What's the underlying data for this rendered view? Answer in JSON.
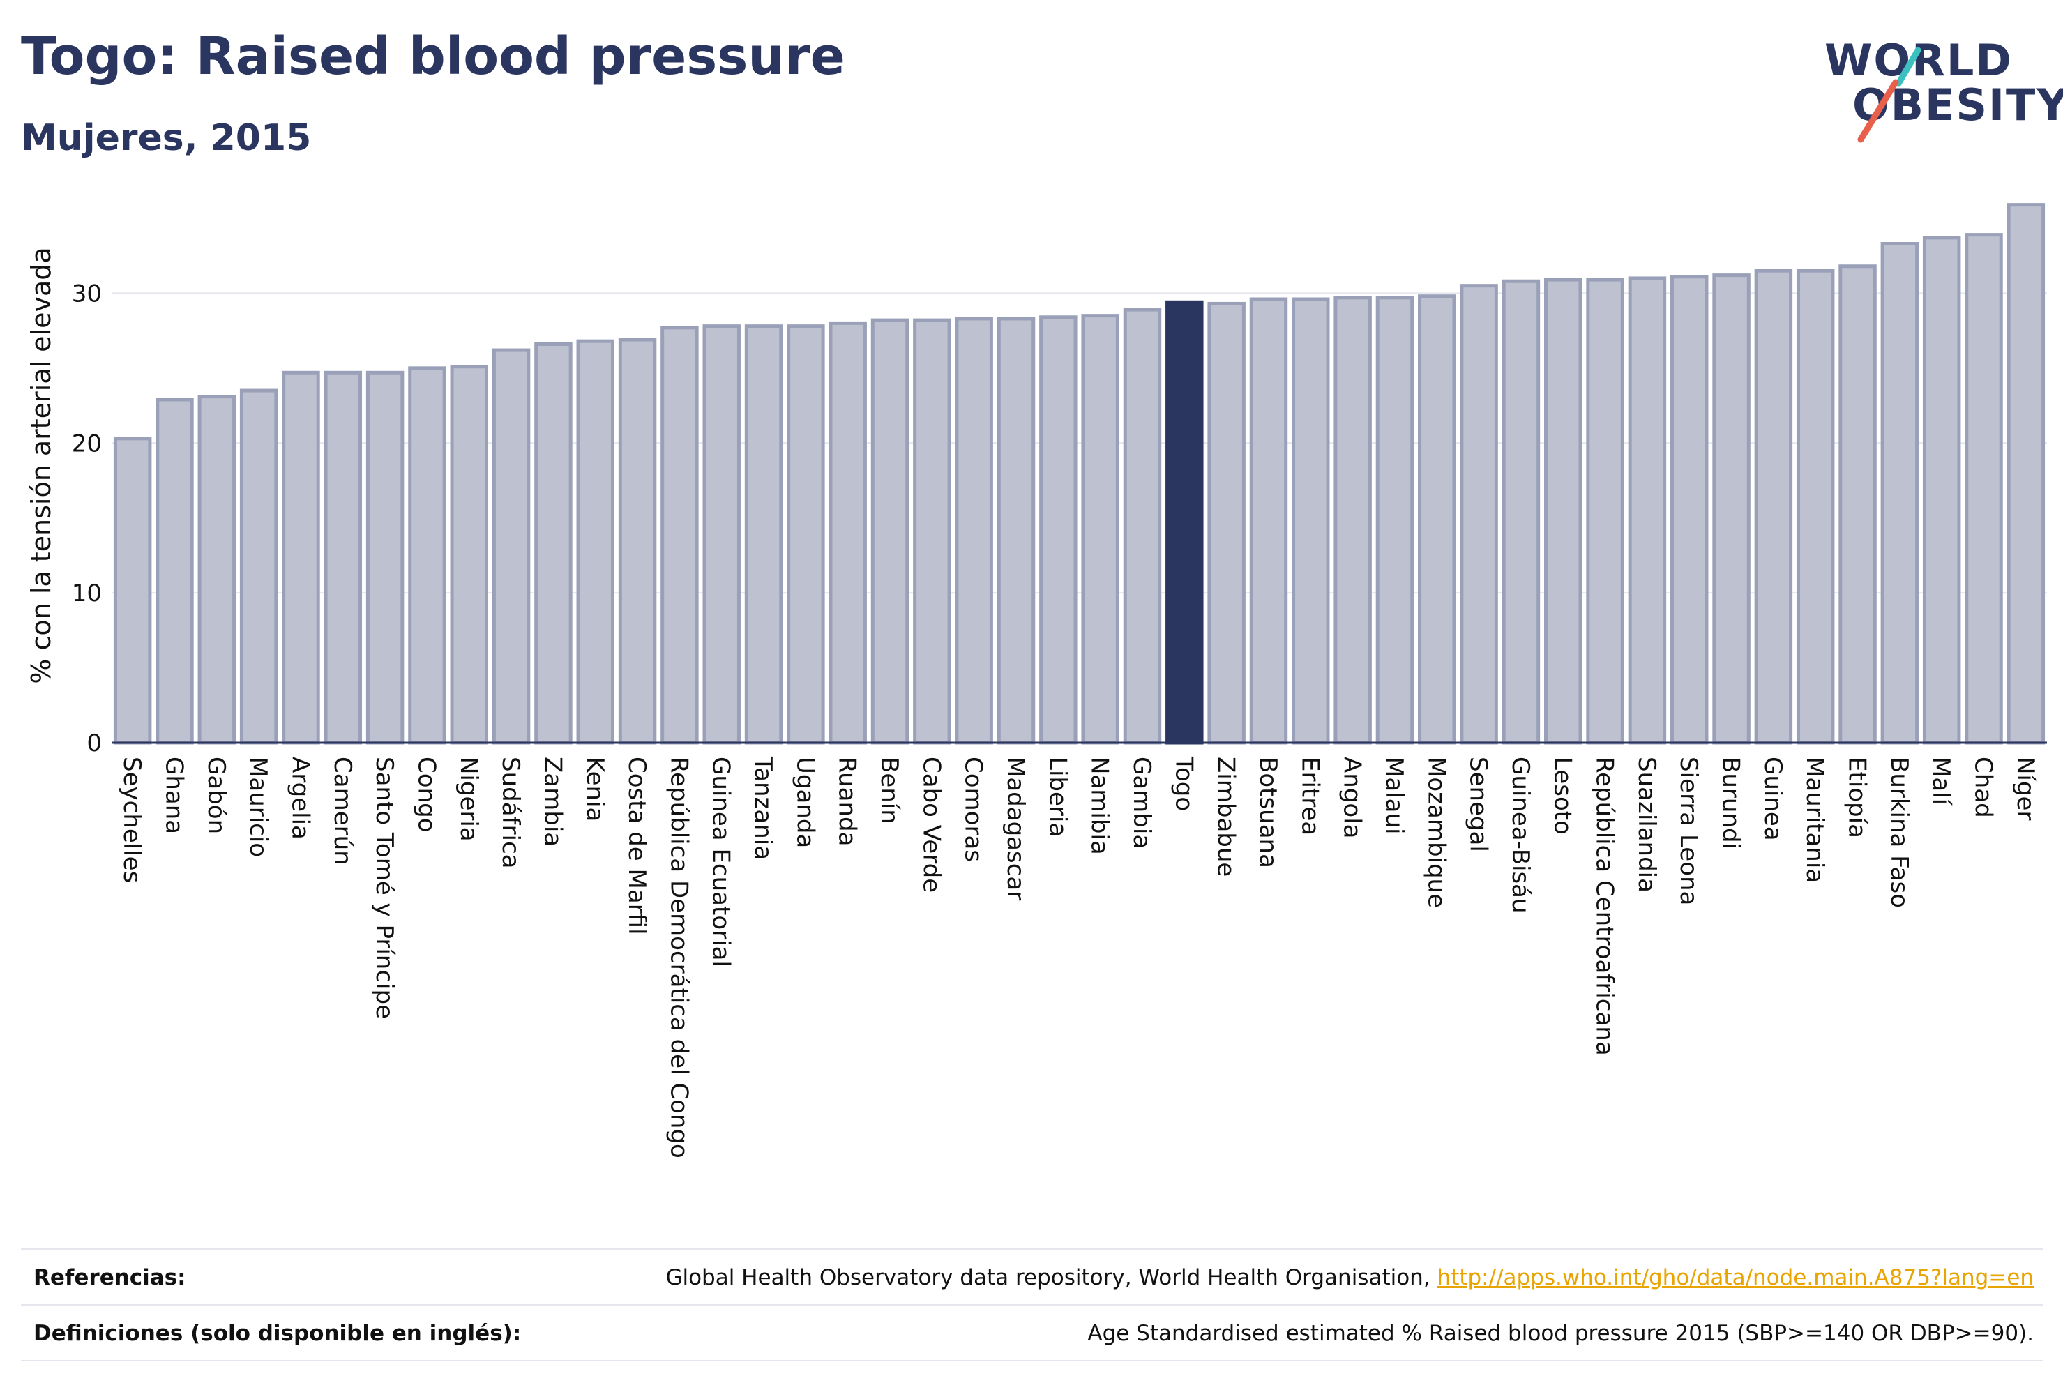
{
  "header": {
    "title": "Togo: Raised blood pressure",
    "subtitle": "Mujeres, 2015"
  },
  "logo": {
    "line1": "WORLD",
    "line2": "OBESITY",
    "accent_teal": "#3bbfbf",
    "accent_coral": "#e8604c"
  },
  "colors": {
    "bar": "#bec1cf",
    "bar_border": "#9aa0b8",
    "highlight": "#2a3560"
  },
  "chart_data": {
    "type": "bar",
    "title": "Togo: Raised blood pressure",
    "subtitle": "Mujeres, 2015",
    "ylabel": "% con la tensión arterial elevada",
    "xlabel": "",
    "ylim": [
      0,
      37
    ],
    "yticks": [
      0,
      10,
      20,
      30
    ],
    "grid": true,
    "highlight": "Togo",
    "categories": [
      "Seychelles",
      "Ghana",
      "Gabón",
      "Mauricio",
      "Argelia",
      "Camerún",
      "Santo Tomé y Príncipe",
      "Congo",
      "Nigeria",
      "Sudáfrica",
      "Zambia",
      "Kenia",
      "Costa de Marfil",
      "República Democrática del Congo",
      "Guinea Ecuatorial",
      "Tanzania",
      "Uganda",
      "Ruanda",
      "Benín",
      "Cabo Verde",
      "Comoras",
      "Madagascar",
      "Liberia",
      "Namibia",
      "Gambia",
      "Togo",
      "Zimbabue",
      "Botsuana",
      "Eritrea",
      "Angola",
      "Malaui",
      "Mozambique",
      "Senegal",
      "Guinea-Bisáu",
      "Lesoto",
      "República Centroafricana",
      "Suazilandia",
      "Sierra Leona",
      "Burundi",
      "Guinea",
      "Mauritania",
      "Etiopía",
      "Burkina Faso",
      "Malí",
      "Chad",
      "Níger"
    ],
    "values": [
      20.3,
      22.9,
      23.1,
      23.5,
      24.7,
      24.7,
      24.7,
      25.0,
      25.1,
      26.2,
      26.6,
      26.8,
      26.9,
      27.7,
      27.8,
      27.8,
      27.8,
      28.0,
      28.2,
      28.2,
      28.3,
      28.3,
      28.4,
      28.5,
      28.9,
      29.4,
      29.3,
      29.6,
      29.6,
      29.7,
      29.7,
      29.8,
      30.5,
      30.8,
      30.9,
      30.9,
      31.0,
      31.1,
      31.2,
      31.5,
      31.5,
      31.8,
      33.3,
      33.7,
      33.9,
      35.9
    ]
  },
  "footer": {
    "references_label": "Referencias:",
    "references_text": "Global Health Observatory data repository, World Health Organisation, ",
    "references_link": "http://apps.who.int/gho/data/node.main.A875?lang=en",
    "definitions_label": "Definiciones (solo disponible en inglés):",
    "definitions_text": "Age Standardised estimated % Raised blood pressure 2015 (SBP>=140 OR DBP>=90)."
  }
}
